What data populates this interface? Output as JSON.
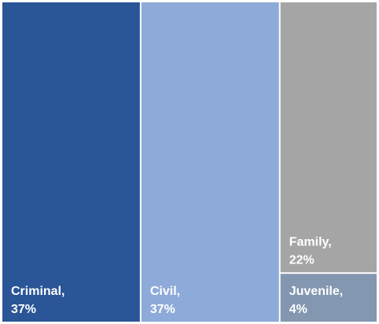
{
  "chart_data": {
    "type": "treemap",
    "categories": [
      "Criminal,",
      "Civil,",
      "Family,",
      "Juvenile,"
    ],
    "values": [
      37,
      37,
      22,
      4
    ],
    "value_labels": [
      "37%",
      "37%",
      "22%",
      "4%"
    ],
    "colors": [
      "#2a5597",
      "#8eaad8",
      "#a5a5a5",
      "#8497b0"
    ]
  }
}
